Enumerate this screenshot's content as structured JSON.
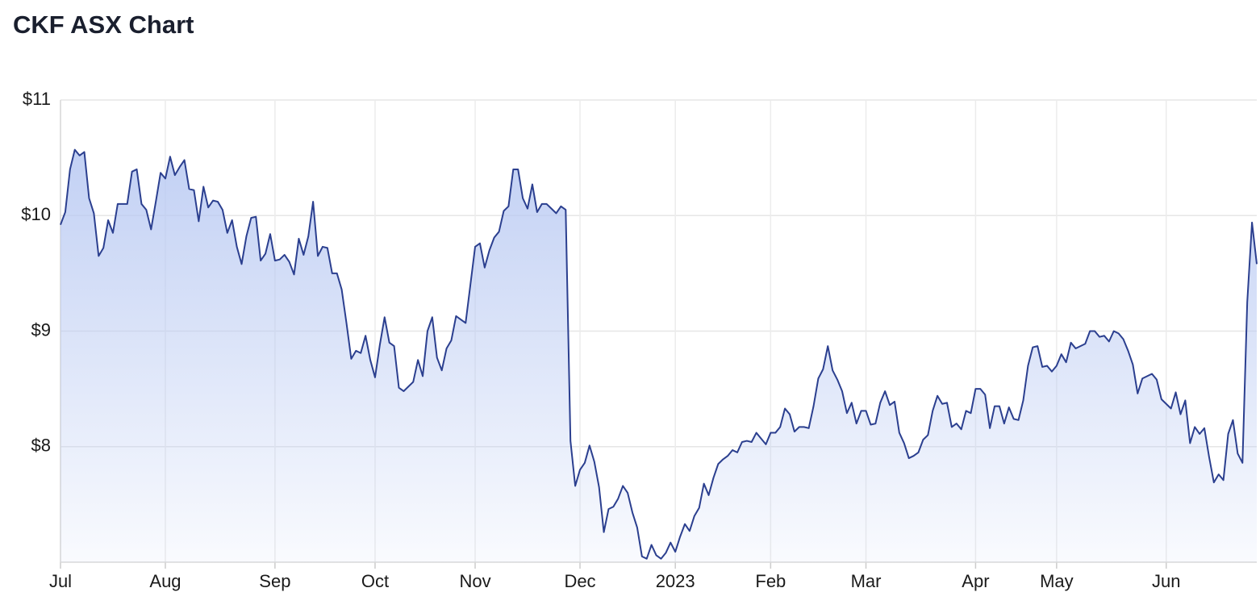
{
  "chart_data": {
    "type": "area",
    "title": "CKF ASX Chart",
    "categories": [
      "Jul",
      null,
      null,
      null,
      null,
      null,
      null,
      null,
      null,
      null,
      null,
      null,
      null,
      null,
      null,
      null,
      null,
      null,
      null,
      null,
      null,
      null,
      "Aug",
      null,
      null,
      null,
      null,
      null,
      null,
      null,
      null,
      null,
      null,
      null,
      null,
      null,
      null,
      null,
      null,
      null,
      null,
      null,
      null,
      null,
      null,
      "Sep",
      null,
      null,
      null,
      null,
      null,
      null,
      null,
      null,
      null,
      null,
      null,
      null,
      null,
      null,
      null,
      null,
      null,
      null,
      null,
      null,
      "Oct",
      null,
      null,
      null,
      null,
      null,
      null,
      null,
      null,
      null,
      null,
      null,
      null,
      null,
      null,
      null,
      null,
      null,
      null,
      null,
      null,
      "Nov",
      null,
      null,
      null,
      null,
      null,
      null,
      null,
      null,
      null,
      null,
      null,
      null,
      null,
      null,
      null,
      null,
      null,
      null,
      null,
      null,
      null,
      "Dec",
      null,
      null,
      null,
      null,
      null,
      null,
      null,
      null,
      null,
      null,
      null,
      null,
      null,
      null,
      null,
      null,
      null,
      null,
      null,
      "2023",
      null,
      null,
      null,
      null,
      null,
      null,
      null,
      null,
      null,
      null,
      null,
      null,
      null,
      null,
      null,
      null,
      null,
      null,
      null,
      "Feb",
      null,
      null,
      null,
      null,
      null,
      null,
      null,
      null,
      null,
      null,
      null,
      null,
      null,
      null,
      null,
      null,
      null,
      null,
      null,
      "Mar",
      null,
      null,
      null,
      null,
      null,
      null,
      null,
      null,
      null,
      null,
      null,
      null,
      null,
      null,
      null,
      null,
      null,
      null,
      null,
      null,
      null,
      null,
      "Apr",
      null,
      null,
      null,
      null,
      null,
      null,
      null,
      null,
      null,
      null,
      null,
      null,
      null,
      null,
      null,
      null,
      "May",
      null,
      null,
      null,
      null,
      null,
      null,
      null,
      null,
      null,
      null,
      null,
      null,
      null,
      null,
      null,
      null,
      null,
      null,
      null,
      null,
      null,
      null,
      "Jun",
      null,
      null,
      null,
      null,
      null,
      null,
      null,
      null,
      null,
      null,
      null,
      null,
      null,
      null,
      null,
      null,
      null,
      null,
      null
    ],
    "values": [
      9.92,
      10.03,
      10.4,
      10.57,
      10.52,
      10.55,
      10.15,
      10.02,
      9.65,
      9.72,
      9.96,
      9.85,
      10.1,
      10.1,
      10.1,
      10.38,
      10.4,
      10.1,
      10.05,
      9.88,
      10.12,
      10.37,
      10.32,
      10.51,
      10.35,
      10.42,
      10.48,
      10.23,
      10.22,
      9.95,
      10.25,
      10.07,
      10.13,
      10.12,
      10.05,
      9.85,
      9.96,
      9.73,
      9.58,
      9.82,
      9.98,
      9.99,
      9.61,
      9.67,
      9.84,
      9.61,
      9.62,
      9.66,
      9.6,
      9.49,
      9.8,
      9.66,
      9.82,
      10.12,
      9.65,
      9.73,
      9.72,
      9.5,
      9.5,
      9.36,
      9.07,
      8.76,
      8.83,
      8.81,
      8.96,
      8.75,
      8.6,
      8.88,
      9.12,
      8.9,
      8.87,
      8.51,
      8.48,
      8.52,
      8.56,
      8.75,
      8.61,
      9.0,
      9.12,
      8.77,
      8.66,
      8.85,
      8.92,
      9.13,
      9.1,
      9.07,
      9.4,
      9.73,
      9.76,
      9.55,
      9.7,
      9.81,
      9.86,
      10.04,
      10.08,
      10.4,
      10.4,
      10.15,
      10.06,
      10.27,
      10.03,
      10.1,
      10.1,
      10.06,
      10.02,
      10.08,
      10.05,
      8.05,
      7.66,
      7.8,
      7.86,
      8.01,
      7.87,
      7.65,
      7.26,
      7.46,
      7.48,
      7.55,
      7.66,
      7.6,
      7.43,
      7.3,
      7.05,
      7.03,
      7.15,
      7.06,
      7.03,
      7.08,
      7.17,
      7.09,
      7.22,
      7.33,
      7.27,
      7.4,
      7.47,
      7.68,
      7.58,
      7.73,
      7.85,
      7.89,
      7.92,
      7.97,
      7.95,
      8.04,
      8.05,
      8.04,
      8.12,
      8.07,
      8.02,
      8.12,
      8.12,
      8.17,
      8.33,
      8.28,
      8.13,
      8.17,
      8.17,
      8.16,
      8.35,
      8.59,
      8.67,
      8.87,
      8.66,
      8.58,
      8.48,
      8.29,
      8.38,
      8.2,
      8.31,
      8.31,
      8.19,
      8.2,
      8.38,
      8.48,
      8.36,
      8.39,
      8.12,
      8.03,
      7.9,
      7.92,
      7.95,
      8.06,
      8.1,
      8.31,
      8.44,
      8.37,
      8.38,
      8.17,
      8.2,
      8.15,
      8.31,
      8.29,
      8.5,
      8.5,
      8.45,
      8.16,
      8.35,
      8.35,
      8.2,
      8.34,
      8.24,
      8.23,
      8.4,
      8.7,
      8.86,
      8.87,
      8.69,
      8.7,
      8.65,
      8.7,
      8.8,
      8.73,
      8.9,
      8.85,
      8.87,
      8.89,
      9.0,
      9.0,
      8.95,
      8.96,
      8.91,
      9.0,
      8.98,
      8.93,
      8.83,
      8.71,
      8.46,
      8.59,
      8.61,
      8.63,
      8.58,
      8.41,
      8.37,
      8.33,
      8.47,
      8.28,
      8.4,
      8.03,
      8.17,
      8.11,
      8.16,
      7.91,
      7.69,
      7.76,
      7.71,
      8.11,
      8.23,
      7.94,
      7.86,
      9.25,
      9.94,
      9.58
    ],
    "color": "#2b3f8f",
    "area_color": "#b7c8f2",
    "ylim": [
      7,
      11
    ],
    "yticks": [
      {
        "value": 8,
        "label": "$8"
      },
      {
        "value": 9,
        "label": "$9"
      },
      {
        "value": 10,
        "label": "$10"
      },
      {
        "value": 11,
        "label": "$11"
      }
    ],
    "grid": true
  }
}
